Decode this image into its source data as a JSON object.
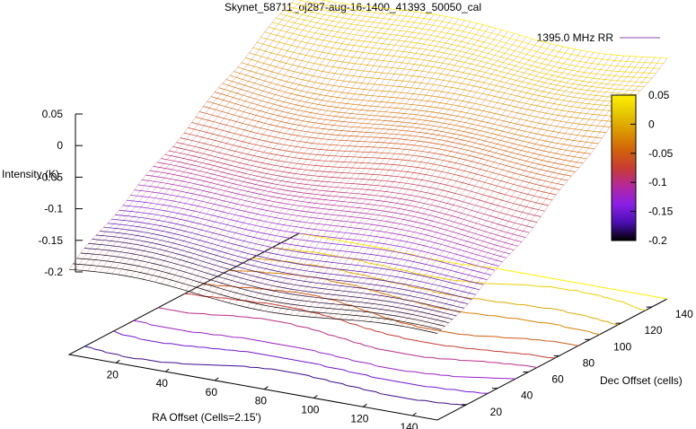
{
  "chart_data": {
    "type": "surface3d",
    "title": "Skynet_58711_oj287-aug-16-1400_41393_50050_cal",
    "zlabel": "Intensity (K)",
    "xlabel": "RA Offset (Cells=2.15')",
    "ylabel": "Dec Offset (cells)",
    "xticks": [
      "20",
      "40",
      "60",
      "80",
      "100",
      "120",
      "140"
    ],
    "yticks": [
      "20",
      "40",
      "60",
      "80",
      "100",
      "120",
      "140"
    ],
    "zticks": [
      "0.05",
      "0",
      "-0.05",
      "-0.1",
      "-0.15",
      "-0.2"
    ],
    "xlim": [
      1,
      150
    ],
    "ylim": [
      1,
      150
    ],
    "zlim": [
      -0.2,
      0.05
    ],
    "colorbar": {
      "ticks": [
        "0.05",
        "0",
        "-0.05",
        "-0.1",
        "-0.15",
        "-0.2"
      ],
      "range": [
        -0.2,
        0.05
      ],
      "colors": [
        "#000000",
        "#4b0fb4",
        "#8a1ee6",
        "#b4289b",
        "#c83c32",
        "#d2640a",
        "#dc9600",
        "#e6c800",
        "#fff000"
      ]
    },
    "series": [
      {
        "name": "1395.0 MHz RR",
        "color": "#8e44ad"
      }
    ],
    "surface": {
      "description_values": "intensity rises roughly linearly with Dec offset from about -0.2 K at Dec 1 to about 0.05 K at Dec 150",
      "z_at_dec_min": -0.2,
      "z_at_dec_max": 0.05
    },
    "contour_levels": [
      -0.175,
      -0.15,
      -0.125,
      -0.1,
      -0.075,
      -0.05,
      -0.025,
      0,
      0.025,
      0.05
    ]
  }
}
